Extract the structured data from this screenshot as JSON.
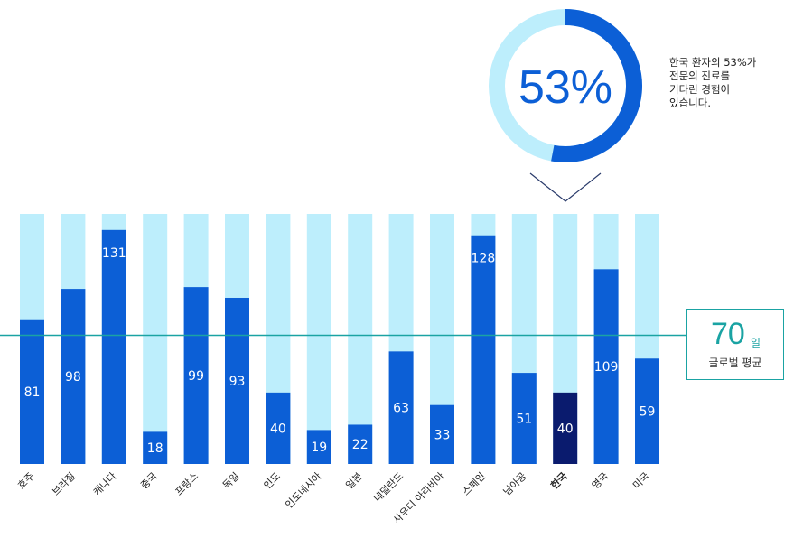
{
  "chart_data": {
    "type": "bar",
    "categories": [
      "호주",
      "브라질",
      "캐나다",
      "중국",
      "프랑스",
      "독일",
      "인도",
      "인도네시아",
      "일본",
      "네덜란드",
      "사우디 아라비아",
      "스페인",
      "남아공",
      "한국",
      "영국",
      "미국"
    ],
    "values": [
      81,
      98,
      131,
      18,
      99,
      93,
      40,
      19,
      22,
      63,
      33,
      128,
      51,
      40,
      109,
      59
    ],
    "highlight_category": "한국",
    "ylim": [
      0,
      140
    ],
    "reference_line": {
      "value": 70,
      "unit": "일",
      "label": "글로벌 평균"
    },
    "donut": {
      "value": 53,
      "label": "53%"
    },
    "callout_text": [
      "한국 환자의 53%가",
      "전문의 진료를",
      "기다린 경험이",
      "있습니다."
    ],
    "colors": {
      "bar": "#0c5fd6",
      "highlight_bar": "#0a1b6e",
      "background_bar": "#bdeefc",
      "reference": "#1aa3a3",
      "donut_ring": "#bdeefc",
      "donut_fill": "#0c5fd6"
    }
  }
}
